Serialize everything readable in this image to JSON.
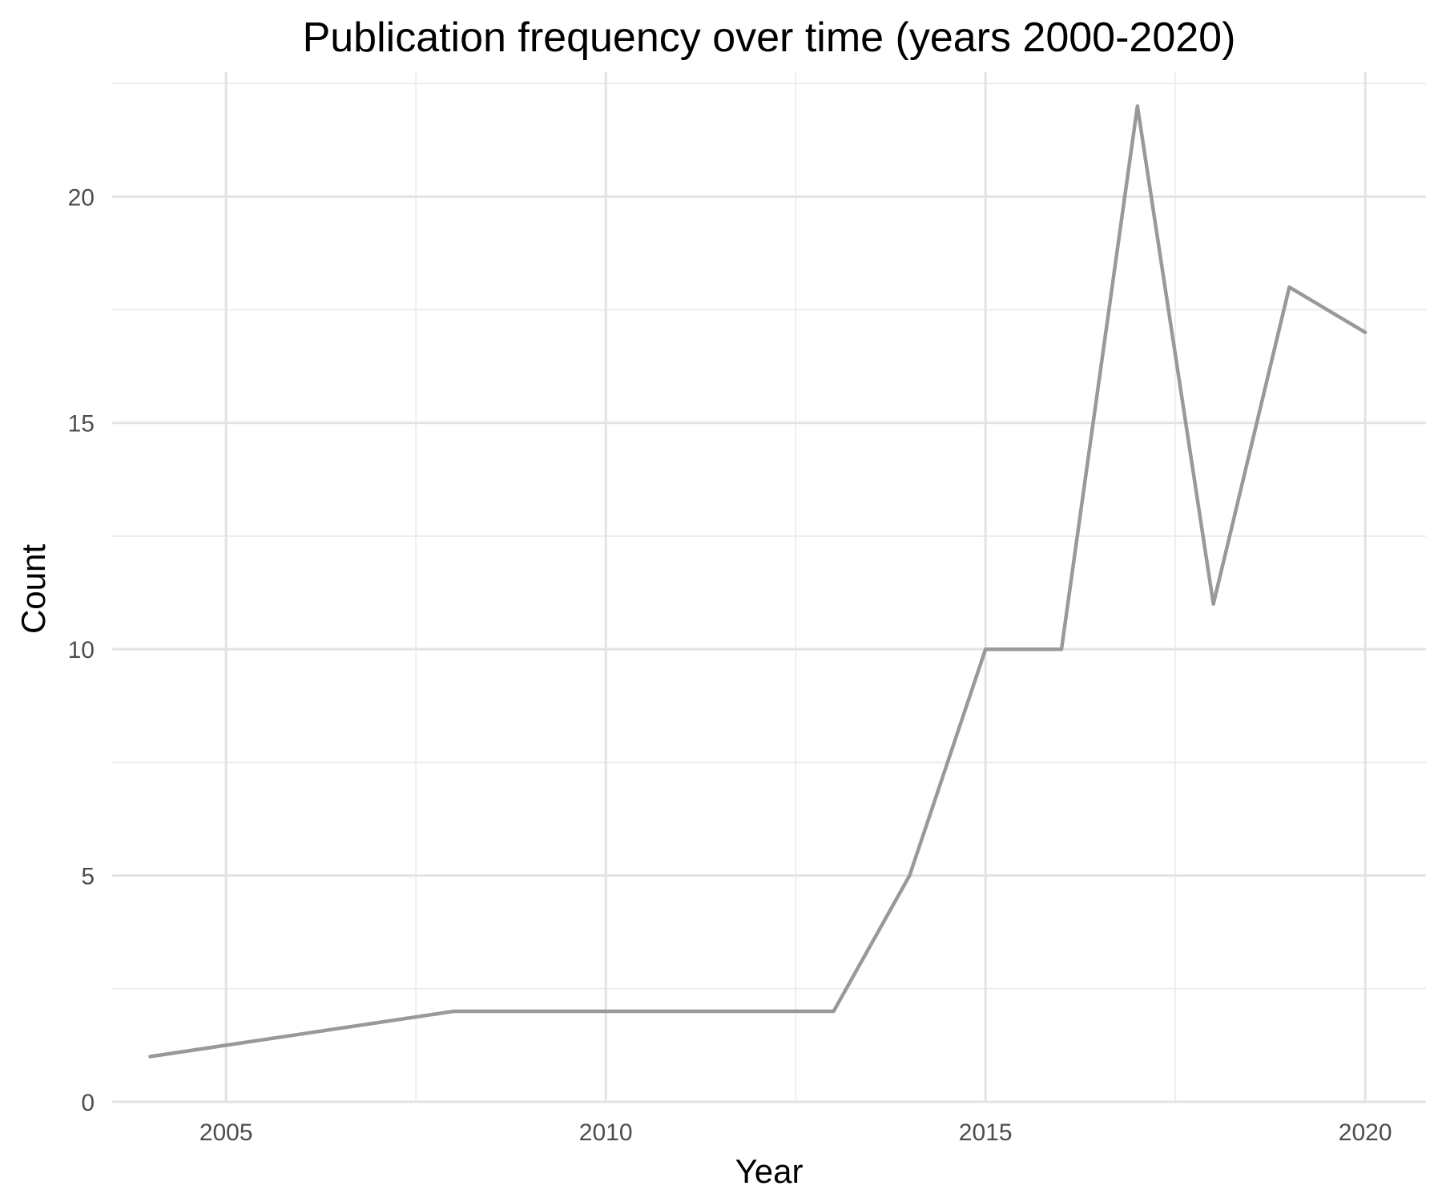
{
  "chart_data": {
    "type": "line",
    "title": "Publication frequency over time (years 2000-2020)",
    "xlabel": "Year",
    "ylabel": "Count",
    "x": [
      2004,
      2008,
      2009,
      2010,
      2011,
      2012,
      2013,
      2014,
      2015,
      2016,
      2017,
      2018,
      2019,
      2020
    ],
    "series": [
      {
        "values": [
          1,
          2,
          2,
          2,
          2,
          2,
          2,
          5,
          10,
          10,
          22,
          11,
          18,
          17
        ],
        "color": "#999999"
      }
    ],
    "xlim": [
      2003.5,
      2020.8
    ],
    "ylim": [
      0,
      22.75
    ],
    "x_ticks": [
      2005,
      2010,
      2015,
      2020
    ],
    "x_tick_labels": [
      "2005",
      "2010",
      "2015",
      "2020"
    ],
    "y_ticks": [
      0,
      5,
      10,
      15,
      20
    ],
    "y_tick_labels": [
      "0",
      "5",
      "10",
      "15",
      "20"
    ],
    "grid": true,
    "legend": "none",
    "background": "#ffffff"
  }
}
